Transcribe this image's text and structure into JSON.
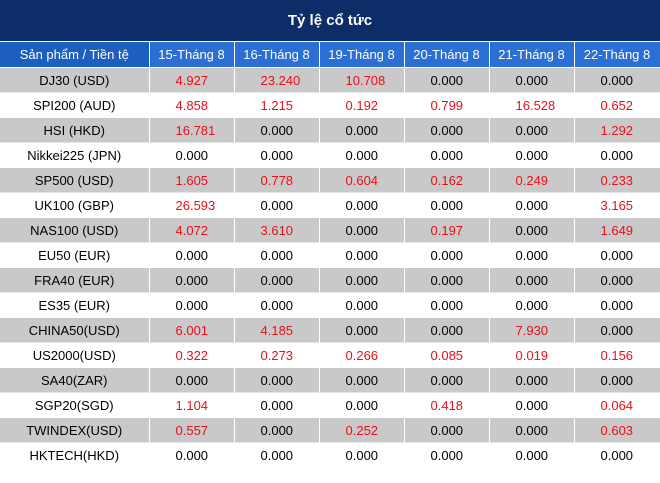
{
  "title": "Tỷ lệ cổ tức",
  "colors": {
    "header_bg": "#0c2d67",
    "subheader_bg": "#2a6fd1",
    "stripe": "#c9c9c9",
    "positive": "#e8101b"
  },
  "columns": [
    "Sản phẩm / Tiền tệ",
    "15-Tháng 8",
    "16-Tháng 8",
    "19-Tháng 8",
    "20-Tháng 8",
    "21-Tháng 8",
    "22-Tháng 8"
  ],
  "rows": [
    {
      "product": "DJ30 (USD)",
      "values": [
        "4.927",
        "23.240",
        "10.708",
        "0.000",
        "0.000",
        "0.000"
      ]
    },
    {
      "product": "SPI200 (AUD)",
      "values": [
        "4.858",
        "1.215",
        "0.192",
        "0.799",
        "16.528",
        "0.652"
      ]
    },
    {
      "product": "HSI (HKD)",
      "values": [
        "16.781",
        "0.000",
        "0.000",
        "0.000",
        "0.000",
        "1.292"
      ]
    },
    {
      "product": "Nikkei225 (JPN)",
      "values": [
        "0.000",
        "0.000",
        "0.000",
        "0.000",
        "0.000",
        "0.000"
      ]
    },
    {
      "product": "SP500 (USD)",
      "values": [
        "1.605",
        "0.778",
        "0.604",
        "0.162",
        "0.249",
        "0.233"
      ]
    },
    {
      "product": "UK100 (GBP)",
      "values": [
        "26.593",
        "0.000",
        "0.000",
        "0.000",
        "0.000",
        "3.165"
      ]
    },
    {
      "product": "NAS100 (USD)",
      "values": [
        "4.072",
        "3.610",
        "0.000",
        "0.197",
        "0.000",
        "1.649"
      ]
    },
    {
      "product": "EU50 (EUR)",
      "values": [
        "0.000",
        "0.000",
        "0.000",
        "0.000",
        "0.000",
        "0.000"
      ]
    },
    {
      "product": "FRA40 (EUR)",
      "values": [
        "0.000",
        "0.000",
        "0.000",
        "0.000",
        "0.000",
        "0.000"
      ]
    },
    {
      "product": "ES35 (EUR)",
      "values": [
        "0.000",
        "0.000",
        "0.000",
        "0.000",
        "0.000",
        "0.000"
      ]
    },
    {
      "product": "CHINA50(USD)",
      "values": [
        "6.001",
        "4.185",
        "0.000",
        "0.000",
        "7.930",
        "0.000"
      ]
    },
    {
      "product": "US2000(USD)",
      "values": [
        "0.322",
        "0.273",
        "0.266",
        "0.085",
        "0.019",
        "0.156"
      ]
    },
    {
      "product": "SA40(ZAR)",
      "values": [
        "0.000",
        "0.000",
        "0.000",
        "0.000",
        "0.000",
        "0.000"
      ]
    },
    {
      "product": "SGP20(SGD)",
      "values": [
        "1.104",
        "0.000",
        "0.000",
        "0.418",
        "0.000",
        "0.064"
      ]
    },
    {
      "product": "TWINDEX(USD)",
      "values": [
        "0.557",
        "0.000",
        "0.252",
        "0.000",
        "0.000",
        "0.603"
      ]
    },
    {
      "product": "HKTECH(HKD)",
      "values": [
        "0.000",
        "0.000",
        "0.000",
        "0.000",
        "0.000",
        "0.000"
      ]
    }
  ]
}
